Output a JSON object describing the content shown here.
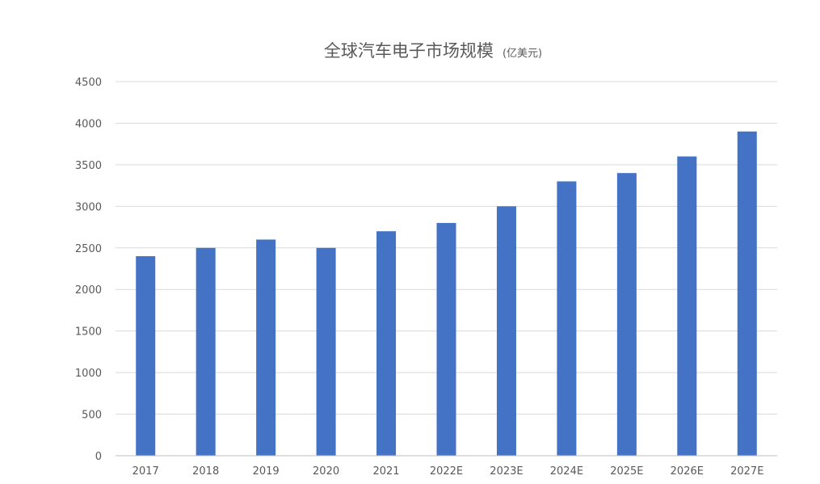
{
  "chart_data": {
    "type": "bar",
    "title": "全球汽车电子市场规模",
    "subtitle": "(亿美元)",
    "categories": [
      "2017",
      "2018",
      "2019",
      "2020",
      "2021",
      "2022E",
      "2023E",
      "2024E",
      "2025E",
      "2026E",
      "2027E"
    ],
    "series": [
      {
        "values": [
          2400,
          2500,
          2600,
          2500,
          2700,
          2800,
          3000,
          3300,
          3400,
          3600,
          3900
        ]
      }
    ],
    "ylim": [
      0,
      4500
    ],
    "yticks": [
      0,
      500,
      1000,
      1500,
      2000,
      2500,
      3000,
      3500,
      4000,
      4500
    ],
    "xlabel": "",
    "ylabel": "",
    "grid": true,
    "legend": "none",
    "bar_color": "#4472c4"
  }
}
